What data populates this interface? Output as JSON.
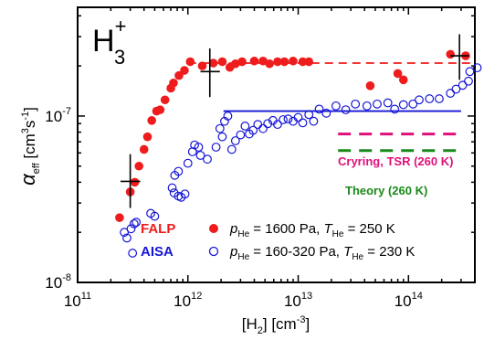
{
  "chart_data": {
    "type": "scatter",
    "title": "H",
    "title_sub": "3",
    "title_sup": "+",
    "xlabel": {
      "main": "[H",
      "sub": "2",
      "tail": "] [cm",
      "sup": "-3",
      "end": "]"
    },
    "ylabel": {
      "greek": "α",
      "sub": "eff",
      "main": " [cm",
      "sup1": "3",
      "s": "s",
      "sup2": "-1",
      "end": "]"
    },
    "x_scale": "log",
    "y_scale": "log",
    "xlim": [
      100000000000.0,
      400000000000000.0
    ],
    "ylim": [
      1e-08,
      4.5e-07
    ],
    "x_ticks": [
      {
        "value": 100000000000.0,
        "base": "10",
        "exp": "11"
      },
      {
        "value": 1000000000000.0,
        "base": "10",
        "exp": "12"
      },
      {
        "value": 10000000000000.0,
        "base": "10",
        "exp": "13"
      },
      {
        "value": 100000000000000.0,
        "base": "10",
        "exp": "14"
      }
    ],
    "y_ticks": [
      {
        "value": 1e-08,
        "base": "10",
        "exp": "-8"
      },
      {
        "value": 1e-07,
        "base": "10",
        "exp": "-7"
      }
    ],
    "series": [
      {
        "name": "FALP",
        "legend_detail": {
          "p": "p",
          "psub": "He",
          "p_text": " = 1600 Pa, ",
          "t": "T",
          "tsub": "He",
          "t_text": " = 250 K"
        },
        "marker": "filled-circle",
        "color": "#ee1c1c",
        "points": [
          [
            240000000000.0,
            2.45e-08
          ],
          [
            300000000000.0,
            3.5e-08
          ],
          [
            330000000000.0,
            4e-08
          ],
          [
            360000000000.0,
            5e-08
          ],
          [
            400000000000.0,
            6.3e-08
          ],
          [
            430000000000.0,
            7.5e-08
          ],
          [
            470000000000.0,
            9.4e-08
          ],
          [
            520000000000.0,
            1.07e-07
          ],
          [
            560000000000.0,
            1.09e-07
          ],
          [
            620000000000.0,
            1.25e-07
          ],
          [
            700000000000.0,
            1.47e-07
          ],
          [
            740000000000.0,
            1.58e-07
          ],
          [
            830000000000.0,
            1.75e-07
          ],
          [
            930000000000.0,
            1.88e-07
          ],
          [
            1050000000000.0,
            2.12e-07
          ],
          [
            1350000000000.0,
            2e-07
          ],
          [
            1700000000000.0,
            2.08e-07
          ],
          [
            2050000000000.0,
            2.12e-07
          ],
          [
            2400000000000.0,
            1.96e-07
          ],
          [
            2700000000000.0,
            2.06e-07
          ],
          [
            3100000000000.0,
            2.12e-07
          ],
          [
            4000000000000.0,
            2.14e-07
          ],
          [
            4800000000000.0,
            2.14e-07
          ],
          [
            5500000000000.0,
            2.06e-07
          ],
          [
            6500000000000.0,
            2.12e-07
          ],
          [
            7500000000000.0,
            2.12e-07
          ],
          [
            9000000000000.0,
            2.14e-07
          ],
          [
            11000000000000.0,
            2.12e-07
          ],
          [
            12500000000000.0,
            2.12e-07
          ],
          [
            45000000000000.0,
            1.52e-07
          ],
          [
            80000000000000.0,
            1.8e-07
          ],
          [
            90000000000000.0,
            1.65e-07
          ],
          [
            240000000000000.0,
            2.35e-07
          ],
          [
            330000000000000.0,
            2.3e-07
          ]
        ]
      },
      {
        "name": "AISA",
        "legend_detail": {
          "p": "p",
          "psub": "He",
          "p_text": " = 160-320 Pa, ",
          "t": "T",
          "tsub": "He",
          "t_text": " = 230 K"
        },
        "marker": "open-circle",
        "color": "#1515d6",
        "points": [
          [
            265000000000.0,
            2e-08
          ],
          [
            280000000000.0,
            1.85e-08
          ],
          [
            305000000000.0,
            2.1e-08
          ],
          [
            315000000000.0,
            1.5e-08
          ],
          [
            325000000000.0,
            2.25e-08
          ],
          [
            340000000000.0,
            2.3e-08
          ],
          [
            460000000000.0,
            2.6e-08
          ],
          [
            500000000000.0,
            2.5e-08
          ],
          [
            750000000000.0,
            3.45e-08
          ],
          [
            820000000000.0,
            3.3e-08
          ],
          [
            870000000000.0,
            3.25e-08
          ],
          [
            940000000000.0,
            3.4e-08
          ],
          [
            720000000000.0,
            3.7e-08
          ],
          [
            760000000000.0,
            4.4e-08
          ],
          [
            820000000000.0,
            4.65e-08
          ],
          [
            1000000000000.0,
            5.2e-08
          ],
          [
            1100000000000.0,
            6.1e-08
          ],
          [
            1150000000000.0,
            6.7e-08
          ],
          [
            1250000000000.0,
            6.5e-08
          ],
          [
            1300000000000.0,
            5.8e-08
          ],
          [
            1500000000000.0,
            5.5e-08
          ],
          [
            1800000000000.0,
            6.5e-08
          ],
          [
            1950000000000.0,
            8.4e-08
          ],
          [
            2050000000000.0,
            7.5e-08
          ],
          [
            2150000000000.0,
            9.3e-08
          ],
          [
            2300000000000.0,
            1e-07
          ],
          [
            2500000000000.0,
            6.3e-08
          ],
          [
            2700000000000.0,
            7.1e-08
          ],
          [
            3000000000000.0,
            7.7e-08
          ],
          [
            3300000000000.0,
            8.7e-08
          ],
          [
            3600000000000.0,
            7.8e-08
          ],
          [
            3900000000000.0,
            8.2e-08
          ],
          [
            4300000000000.0,
            8.9e-08
          ],
          [
            4800000000000.0,
            8.4e-08
          ],
          [
            5300000000000.0,
            9e-08
          ],
          [
            5900000000000.0,
            9.4e-08
          ],
          [
            6500000000000.0,
            8.9e-08
          ],
          [
            7300000000000.0,
            9.5e-08
          ],
          [
            8100000000000.0,
            9.6e-08
          ],
          [
            9000000000000.0,
            9.3e-08
          ],
          [
            10000000000000.0,
            9.8e-08
          ],
          [
            11000000000000.0,
            9.1e-08
          ],
          [
            12500000000000.0,
            1.02e-07
          ],
          [
            13800000000000.0,
            9.3e-08
          ],
          [
            15500000000000.0,
            1.1e-07
          ],
          [
            18000000000000.0,
            1.04e-07
          ],
          [
            22000000000000.0,
            1.15e-07
          ],
          [
            27000000000000.0,
            1.09e-07
          ],
          [
            33000000000000.0,
            1.18e-07
          ],
          [
            42000000000000.0,
            1.15e-07
          ],
          [
            52000000000000.0,
            1.18e-07
          ],
          [
            65000000000000.0,
            1.2e-07
          ],
          [
            75000000000000.0,
            1.1e-07
          ],
          [
            90000000000000.0,
            1.17e-07
          ],
          [
            110000000000000.0,
            1.18e-07
          ],
          [
            125000000000000.0,
            1.25e-07
          ],
          [
            155000000000000.0,
            1.27e-07
          ],
          [
            190000000000000.0,
            1.27e-07
          ],
          [
            240000000000000.0,
            1.37e-07
          ],
          [
            270000000000000.0,
            1.45e-07
          ],
          [
            310000000000000.0,
            1.53e-07
          ],
          [
            350000000000000.0,
            1.62e-07
          ],
          [
            360000000000000.0,
            1.85e-07
          ],
          [
            420000000000000.0,
            1.95e-07
          ]
        ]
      }
    ],
    "lines": [
      {
        "role": "falp-plateau",
        "style": "dashed",
        "color": "#ee1c1c",
        "x": [
          1000000000000.0,
          400000000000000.0
        ],
        "y": [
          2.08e-07,
          2.08e-07
        ]
      },
      {
        "role": "aisa-plateau",
        "style": "solid",
        "color": "#1515d6",
        "x": [
          2100000000000.0,
          300000000000000.0
        ],
        "y": [
          1.07e-07,
          1.07e-07
        ]
      },
      {
        "role": "crying-tsr",
        "style": "dashed",
        "color": "#e0107a",
        "x": [
          23000000000000.0,
          295000000000000.0
        ],
        "y": [
          7.8e-08,
          7.8e-08
        ]
      },
      {
        "role": "theory",
        "style": "dashed",
        "color": "#1a8a1a",
        "x": [
          23000000000000.0,
          295000000000000.0
        ],
        "y": [
          6.2e-08,
          6.2e-08
        ]
      }
    ],
    "error_markers": [
      {
        "x": 300000000000.0,
        "y": 4.05e-08,
        "y_err": [
          2.8e-08,
          5.9e-08
        ],
        "x_err": [
          245000000000.0,
          370000000000.0
        ]
      },
      {
        "x": 1580000000000.0,
        "y": 1.85e-07,
        "y_err": [
          1.3e-07,
          2.55e-07
        ],
        "x_err": [
          1300000000000.0,
          1950000000000.0
        ]
      },
      {
        "x": 290000000000000.0,
        "y": 2.3e-07,
        "y_err": [
          1.65e-07,
          3.1e-07
        ],
        "x_err": [
          240000000000000.0,
          355000000000000.0
        ]
      }
    ],
    "annotations": [
      {
        "role": "crying-label",
        "text": "Cryring, TSR (260 K)",
        "color": "#e0107a"
      },
      {
        "role": "theory-label",
        "text": "Theory (260 K)",
        "color": "#1a8a1a"
      }
    ],
    "legend": {
      "placement": "bottom-right"
    }
  }
}
